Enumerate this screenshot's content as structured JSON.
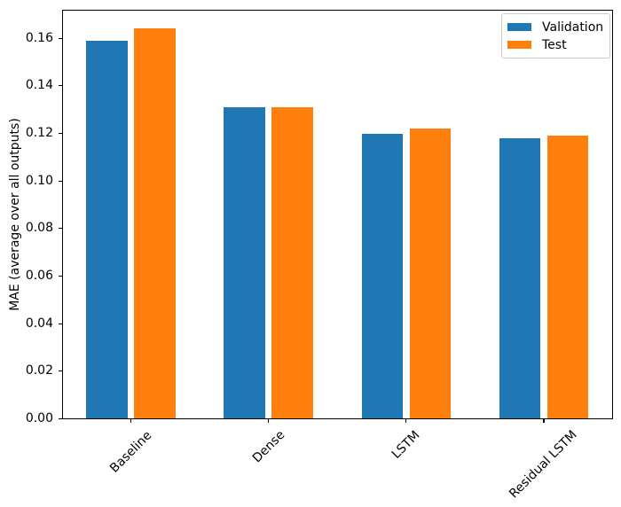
{
  "chart_data": {
    "type": "bar",
    "categories": [
      "Baseline",
      "Dense",
      "LSTM",
      "Residual LSTM"
    ],
    "series": [
      {
        "name": "Validation",
        "color": "#1f77b4",
        "values": [
          0.159,
          0.131,
          0.12,
          0.118
        ]
      },
      {
        "name": "Test",
        "color": "#ff7f0e",
        "values": [
          0.164,
          0.131,
          0.122,
          0.119
        ]
      }
    ],
    "title": "",
    "xlabel": "",
    "ylabel": "MAE (average over all outputs)",
    "ylim": [
      0,
      0.172
    ],
    "ytick_values": [
      0.0,
      0.02,
      0.04,
      0.06,
      0.08,
      0.1,
      0.12,
      0.14,
      0.16
    ],
    "ytick_labels": [
      "0.00",
      "0.02",
      "0.04",
      "0.06",
      "0.08",
      "0.10",
      "0.12",
      "0.14",
      "0.16"
    ],
    "xtick_rotation_deg": 45,
    "grid": false,
    "legend_position": "upper right"
  }
}
